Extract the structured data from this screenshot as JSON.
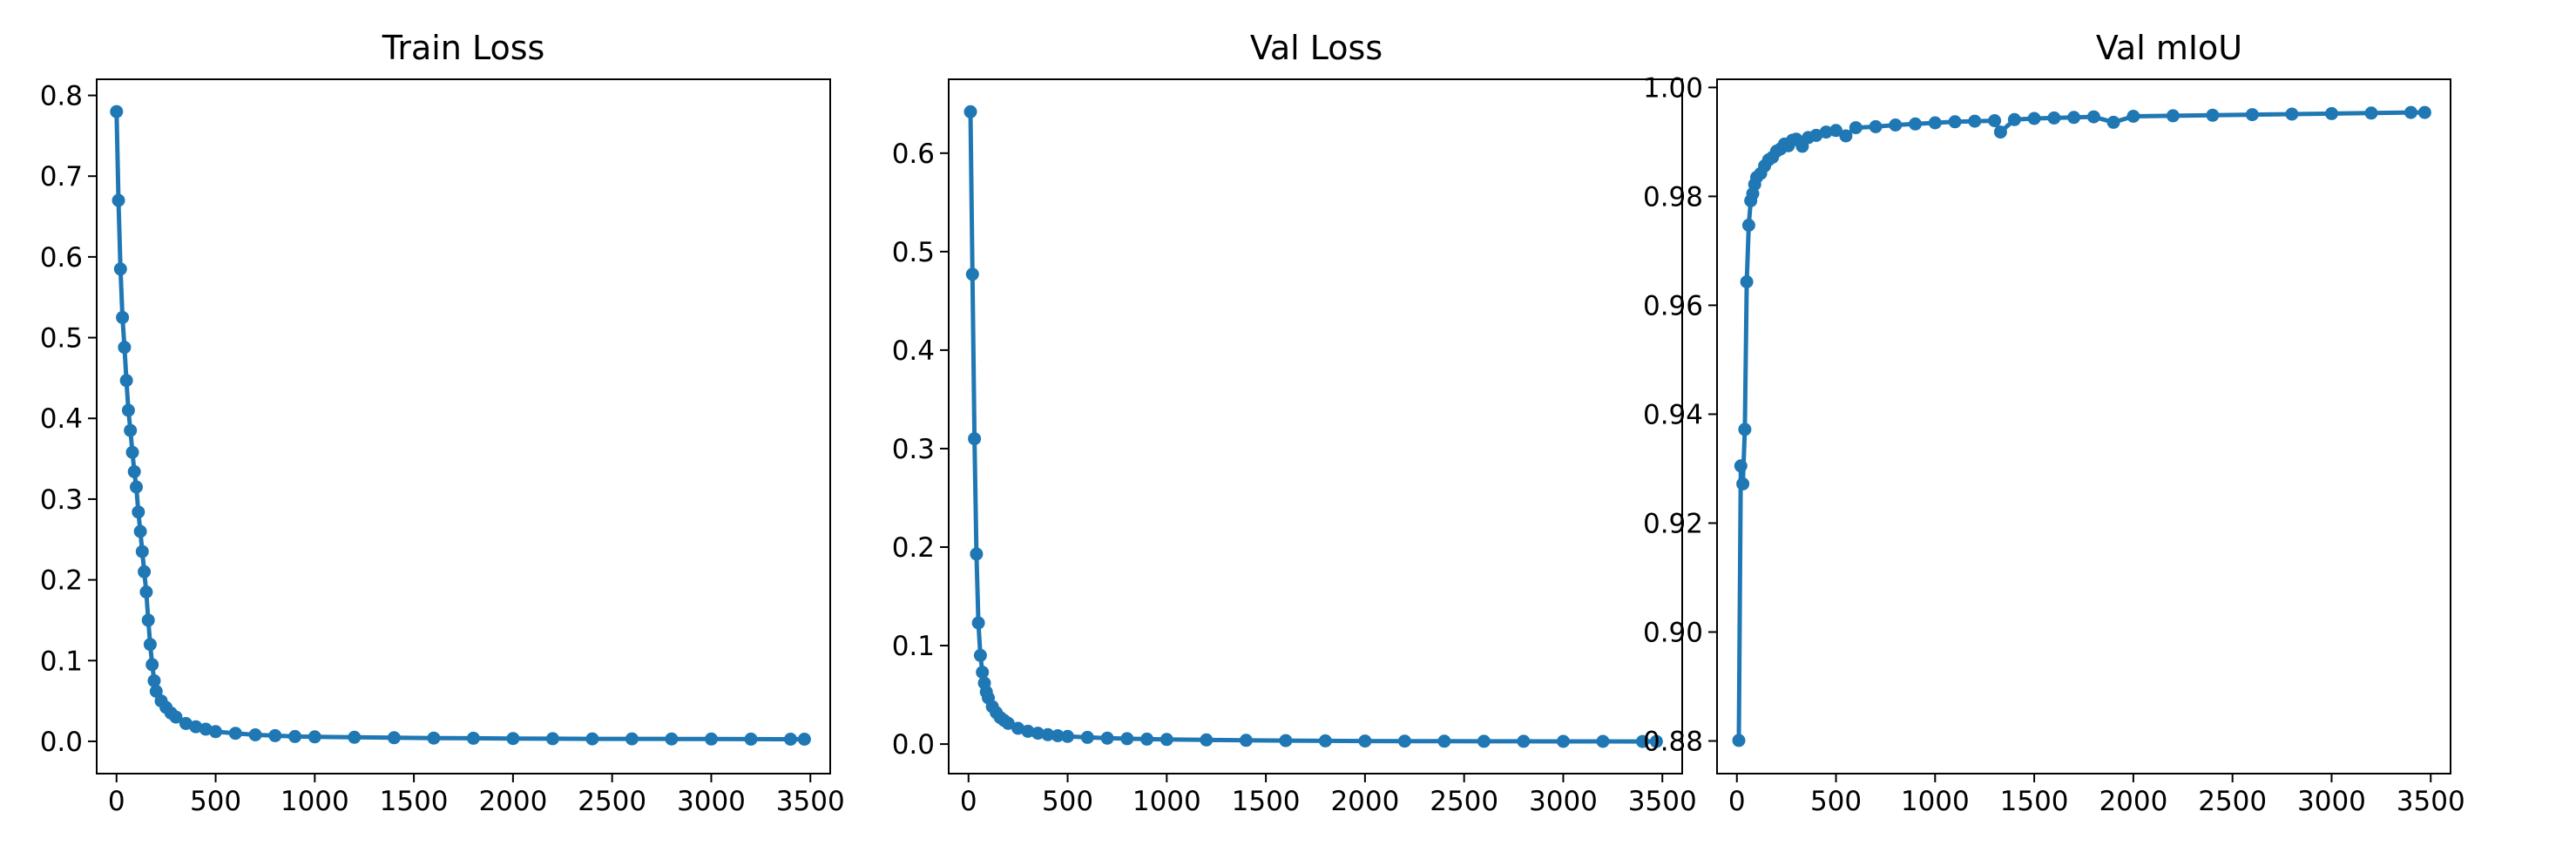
{
  "figure": {
    "line_color": "#1f77b4",
    "axes_color": "#000000",
    "background": "#ffffff"
  },
  "chart_data": [
    {
      "type": "line",
      "title": "Train Loss",
      "xlabel": "",
      "ylabel": "",
      "xlim": [
        -100,
        3600
      ],
      "ylim": [
        -0.04,
        0.82
      ],
      "xticks": [
        0,
        500,
        1000,
        1500,
        2000,
        2500,
        3000,
        3500
      ],
      "yticks": [
        0.0,
        0.1,
        0.2,
        0.3,
        0.4,
        0.5,
        0.6,
        0.7,
        0.8
      ],
      "ytick_labels": [
        "0.0",
        "0.1",
        "0.2",
        "0.3",
        "0.4",
        "0.5",
        "0.6",
        "0.7",
        "0.8"
      ],
      "grid": false,
      "series": [
        {
          "marker": "circle",
          "x": [
            0,
            10,
            20,
            30,
            40,
            50,
            60,
            70,
            80,
            90,
            100,
            110,
            120,
            130,
            140,
            150,
            160,
            170,
            180,
            190,
            200,
            225,
            250,
            275,
            300,
            350,
            400,
            450,
            500,
            600,
            700,
            800,
            900,
            1000,
            1200,
            1400,
            1600,
            1800,
            2000,
            2200,
            2400,
            2600,
            2800,
            3000,
            3200,
            3400,
            3470
          ],
          "y": [
            0.78,
            0.67,
            0.585,
            0.525,
            0.488,
            0.447,
            0.41,
            0.385,
            0.358,
            0.334,
            0.315,
            0.284,
            0.26,
            0.235,
            0.21,
            0.185,
            0.15,
            0.12,
            0.095,
            0.075,
            0.062,
            0.05,
            0.042,
            0.035,
            0.03,
            0.022,
            0.018,
            0.015,
            0.012,
            0.01,
            0.008,
            0.007,
            0.006,
            0.0055,
            0.005,
            0.0045,
            0.004,
            0.0038,
            0.0035,
            0.0033,
            0.0031,
            0.003,
            0.0029,
            0.0028,
            0.0027,
            0.0026,
            0.0026
          ]
        }
      ]
    },
    {
      "type": "line",
      "title": "Val Loss",
      "xlabel": "",
      "ylabel": "",
      "xlim": [
        -100,
        3600
      ],
      "ylim": [
        -0.03,
        0.675
      ],
      "xticks": [
        0,
        500,
        1000,
        1500,
        2000,
        2500,
        3000,
        3500
      ],
      "yticks": [
        0.0,
        0.1,
        0.2,
        0.3,
        0.4,
        0.5,
        0.6
      ],
      "ytick_labels": [
        "0.0",
        "0.1",
        "0.2",
        "0.3",
        "0.4",
        "0.5",
        "0.6"
      ],
      "grid": false,
      "series": [
        {
          "marker": "circle",
          "x": [
            10,
            20,
            30,
            40,
            50,
            60,
            70,
            80,
            90,
            100,
            120,
            140,
            160,
            180,
            200,
            250,
            300,
            350,
            400,
            450,
            500,
            600,
            700,
            800,
            900,
            1000,
            1200,
            1400,
            1600,
            1800,
            2000,
            2200,
            2400,
            2600,
            2800,
            3000,
            3200,
            3400,
            3470
          ],
          "y": [
            0.642,
            0.477,
            0.31,
            0.193,
            0.123,
            0.09,
            0.073,
            0.062,
            0.053,
            0.047,
            0.038,
            0.032,
            0.027,
            0.024,
            0.021,
            0.016,
            0.013,
            0.011,
            0.0095,
            0.0085,
            0.0078,
            0.0068,
            0.006,
            0.0055,
            0.005,
            0.0047,
            0.0042,
            0.0038,
            0.0035,
            0.0033,
            0.0031,
            0.003,
            0.0029,
            0.0028,
            0.0028,
            0.0027,
            0.0027,
            0.0026,
            0.0026
          ]
        }
      ]
    },
    {
      "type": "line",
      "title": "Val mIoU",
      "xlabel": "",
      "ylabel": "",
      "xlim": [
        -100,
        3600
      ],
      "ylim": [
        0.874,
        1.0015
      ],
      "xticks": [
        0,
        500,
        1000,
        1500,
        2000,
        2500,
        3000,
        3500
      ],
      "yticks": [
        0.88,
        0.9,
        0.92,
        0.94,
        0.96,
        0.98,
        1.0
      ],
      "ytick_labels": [
        "0.88",
        "0.90",
        "0.92",
        "0.94",
        "0.96",
        "0.98",
        "1.00"
      ],
      "grid": false,
      "series": [
        {
          "marker": "circle",
          "x": [
            10,
            20,
            30,
            40,
            50,
            60,
            70,
            80,
            90,
            100,
            120,
            140,
            160,
            180,
            200,
            220,
            240,
            260,
            280,
            300,
            330,
            360,
            400,
            450,
            500,
            550,
            600,
            700,
            800,
            900,
            1000,
            1100,
            1200,
            1300,
            1330,
            1400,
            1500,
            1600,
            1700,
            1800,
            1900,
            2000,
            2200,
            2400,
            2600,
            2800,
            3000,
            3200,
            3400,
            3470
          ],
          "y": [
            0.8801,
            0.9305,
            0.9272,
            0.9372,
            0.9643,
            0.9747,
            0.9792,
            0.9805,
            0.9822,
            0.9835,
            0.9842,
            0.9856,
            0.9867,
            0.9872,
            0.9883,
            0.9887,
            0.9896,
            0.9893,
            0.9903,
            0.9905,
            0.9892,
            0.9908,
            0.9912,
            0.9918,
            0.9921,
            0.9911,
            0.9926,
            0.9928,
            0.9931,
            0.9933,
            0.9935,
            0.9937,
            0.9938,
            0.9939,
            0.9918,
            0.9941,
            0.9943,
            0.9944,
            0.9945,
            0.9946,
            0.9936,
            0.9947,
            0.9948,
            0.9949,
            0.995,
            0.9951,
            0.9952,
            0.9953,
            0.9954,
            0.9954
          ]
        }
      ]
    }
  ]
}
